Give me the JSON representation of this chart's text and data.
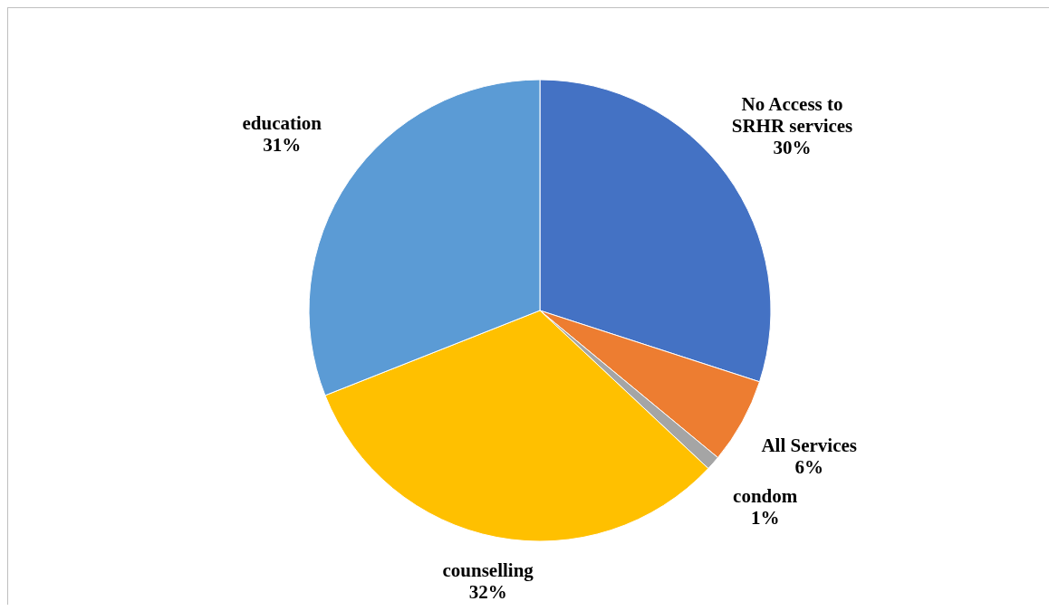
{
  "chart_data": {
    "type": "pie",
    "categories": [
      "No Access to SRHR services",
      "All Services",
      "condom",
      "counselling",
      "education"
    ],
    "values": [
      30,
      6,
      1,
      32,
      31
    ],
    "colors": [
      "#4472c4",
      "#ed7d31",
      "#a5a5a5",
      "#ffc000",
      "#5b9bd5"
    ],
    "value_labels": [
      "30%",
      "6%",
      "1%",
      "32%",
      "31%"
    ],
    "legend": false
  }
}
